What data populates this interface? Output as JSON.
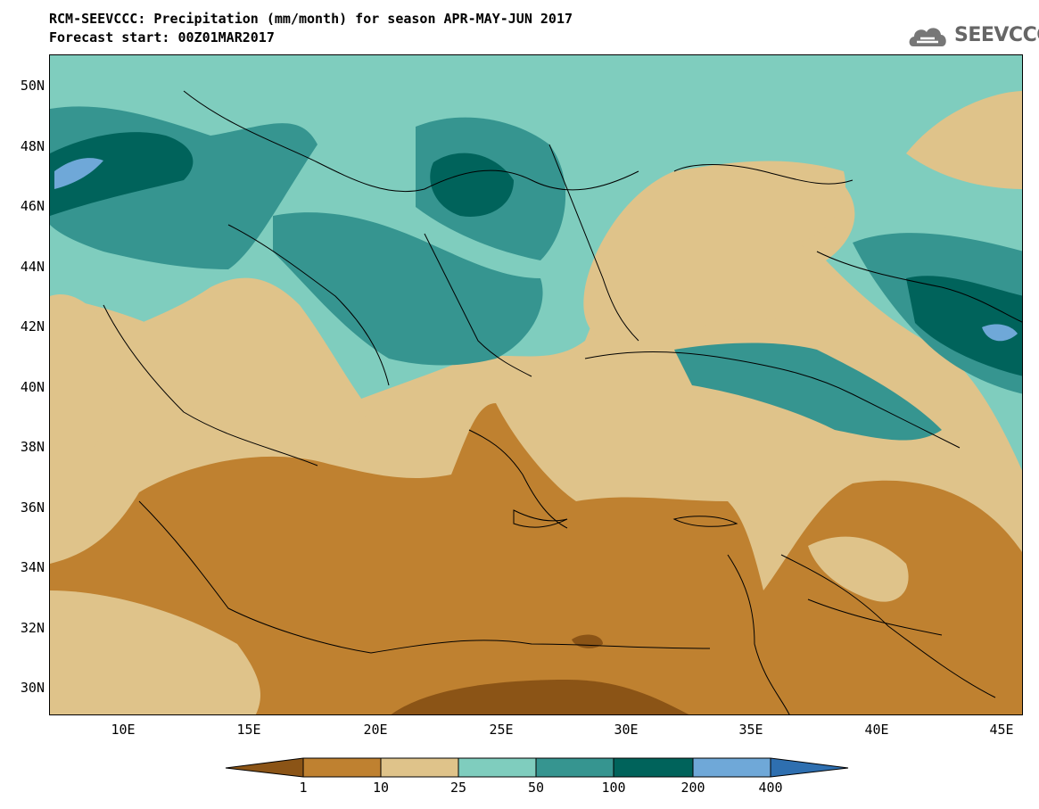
{
  "title_line1": "RCM-SEEVCCC: Precipitation (mm/month) for season APR-MAY-JUN 2017",
  "title_line2": "Forecast start: 00Z01MAR2017",
  "logo_text": "SEEVCCC",
  "colors": {
    "c0": "#8b5416",
    "c1": "#bf8130",
    "c2": "#dfc38a",
    "c3": "#7fcdbe",
    "c4": "#369590",
    "c5": "#00635b",
    "c6": "#6fa8d8",
    "c7": "#2e6fb0",
    "border": "#000000"
  },
  "map": {
    "lat_labels": [
      "50N",
      "48N",
      "46N",
      "44N",
      "42N",
      "40N",
      "38N",
      "36N",
      "34N",
      "32N",
      "30N"
    ],
    "lon_labels": [
      "10E",
      "15E",
      "20E",
      "25E",
      "30E",
      "35E",
      "40E",
      "45E"
    ]
  },
  "colorbar": {
    "labels": [
      "1",
      "10",
      "25",
      "50",
      "100",
      "200",
      "400"
    ]
  }
}
